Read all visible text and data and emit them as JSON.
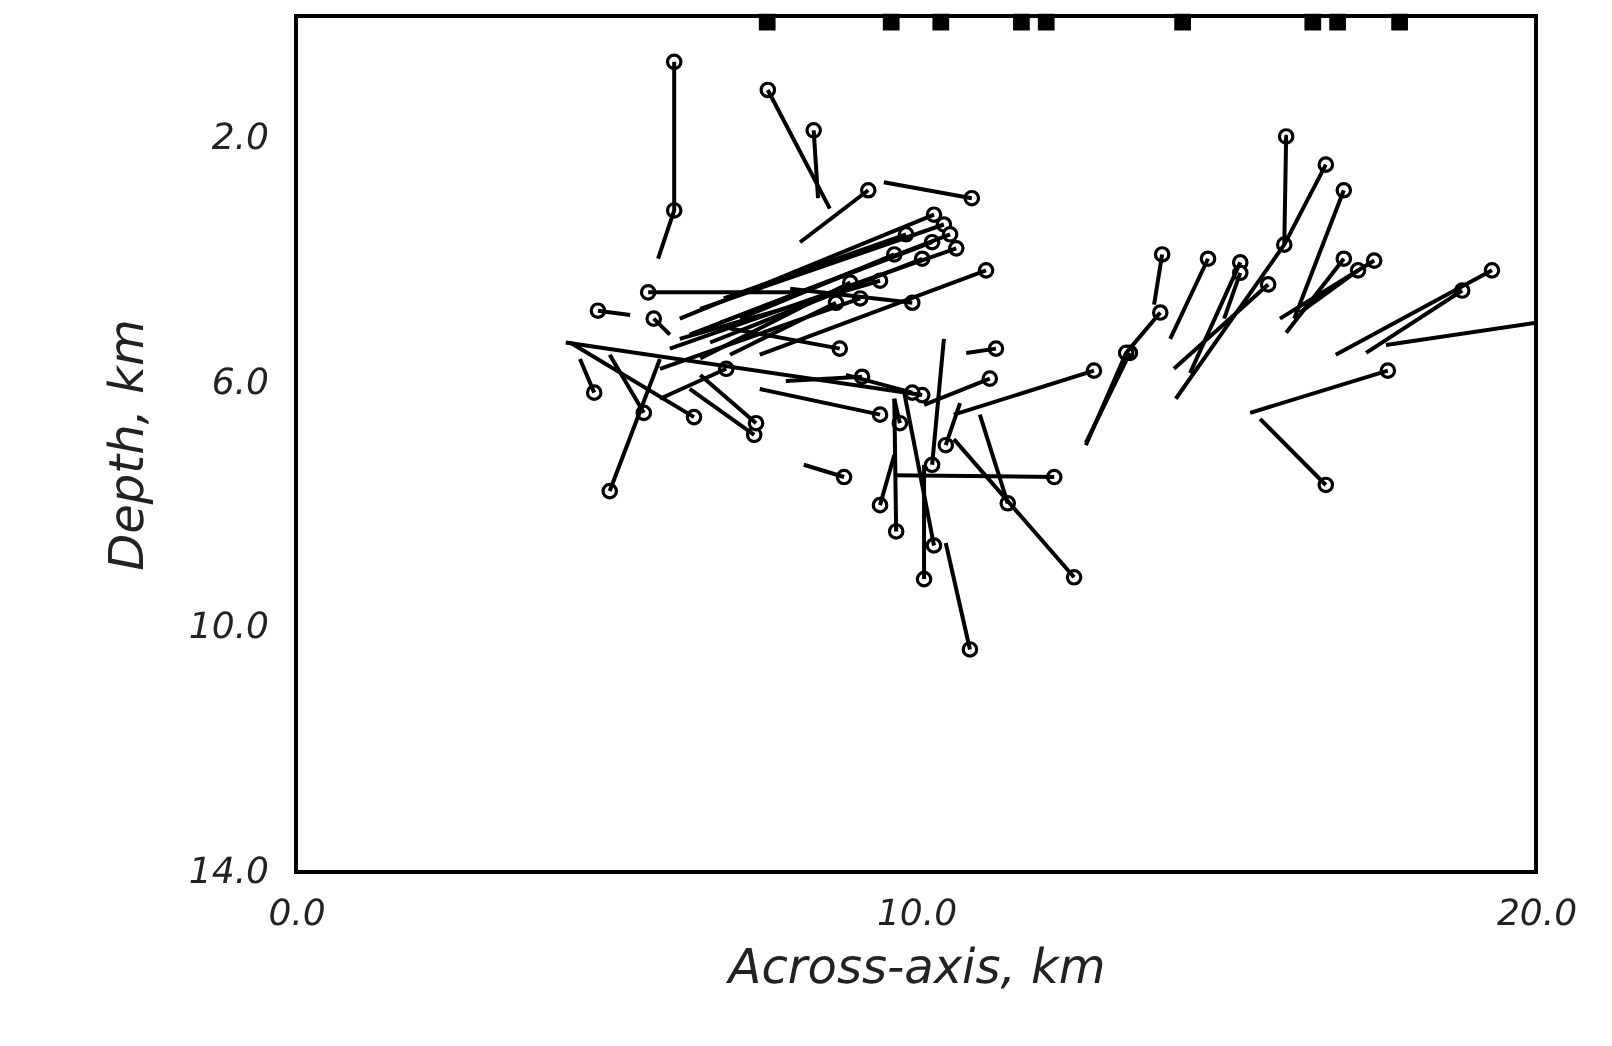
{
  "chart_data": {
    "type": "line",
    "xlabel": "Across-axis, km",
    "ylabel": "Depth, km",
    "xlim": [
      0,
      20
    ],
    "xticks": [
      {
        "value": 0,
        "label": "0.0"
      },
      {
        "value": 10,
        "label": "10.0"
      },
      {
        "value": 20,
        "label": "20.0"
      }
    ],
    "ylim": [
      14,
      0
    ],
    "yticks": [
      {
        "value": 2,
        "label": "2.0"
      },
      {
        "value": 6,
        "label": "6.0"
      },
      {
        "value": 10,
        "label": "10.0"
      },
      {
        "value": 14,
        "label": "14.0"
      },
      {
        "value": 0,
        "label": null
      }
    ],
    "grid": false,
    "line_style": "solid",
    "series": [
      {
        "type": "scatter",
        "marker": "square",
        "color": "#000000",
        "x": [
          7.6,
          9.6,
          10.4,
          11.7,
          12.1,
          14.3,
          16.4,
          16.8,
          17.8
        ],
        "values": [
          0.1,
          0.1,
          0.1,
          0.1,
          0.1,
          0.1,
          0.1,
          0.1,
          0.1
        ]
      },
      {
        "type": "scatter",
        "marker": "circle",
        "color": "#000000",
        "x": [
          6.1,
          6.1,
          7.61,
          8.35,
          9.23,
          10.9,
          10.29,
          10.45,
          10.55,
          10.26,
          10.65,
          10.1,
          9.84,
          9.65,
          11.13,
          9.42,
          8.94,
          9.1,
          9.94,
          8.71,
          5.68,
          4.87,
          5.77,
          4.81,
          5.06,
          5.61,
          6.42,
          7.39,
          7.42,
          6.94,
          10.1,
          9.42,
          8.84,
          12.23,
          12.87,
          12.55,
          11.48,
          10.87,
          10.13,
          10.29,
          9.68,
          9.42,
          9.74,
          9.13,
          9.94,
          10.48,
          11.19,
          11.29,
          10.26,
          13.45,
          8.77,
          15.97,
          16.61,
          16.9,
          15.94,
          13.97,
          14.71,
          15.23,
          15.23,
          15.68,
          13.94,
          13.39,
          16.9,
          17.13,
          17.39,
          19.29,
          18.81,
          17.61,
          16.61
        ],
        "values": [
          0.75,
          3.18,
          1.21,
          1.87,
          2.85,
          2.98,
          3.25,
          3.41,
          3.57,
          3.7,
          3.8,
          3.97,
          3.57,
          3.9,
          4.16,
          4.33,
          4.36,
          4.62,
          4.69,
          4.69,
          4.52,
          4.82,
          4.95,
          6.16,
          7.77,
          6.49,
          6.56,
          6.85,
          6.66,
          5.77,
          6.2,
          8.0,
          7.54,
          7.54,
          5.8,
          9.18,
          7.97,
          10.36,
          9.21,
          8.66,
          8.43,
          6.52,
          6.66,
          5.9,
          6.16,
          7.02,
          5.93,
          5.44,
          7.34,
          5.51,
          5.44,
          1.97,
          2.43,
          2.85,
          3.74,
          3.9,
          3.97,
          4.03,
          4.2,
          4.39,
          4.85,
          5.51,
          3.97,
          4.16,
          4.0,
          4.16,
          4.49,
          5.8,
          7.67
        ]
      },
      {
        "color": "#000000",
        "x": [
          6.1,
          6.1,
          5.84
        ],
        "values": [
          0.75,
          3.18,
          3.97
        ]
      },
      {
        "color": "#000000",
        "x": [
          7.61,
          8.61
        ],
        "values": [
          1.21,
          3.15
        ]
      },
      {
        "color": "#000000",
        "x": [
          8.35,
          8.42
        ],
        "values": [
          1.87,
          2.98
        ]
      },
      {
        "color": "#000000",
        "x": [
          9.23,
          8.13
        ],
        "values": [
          2.85,
          3.7
        ]
      },
      {
        "color": "#000000",
        "x": [
          10.9,
          9.48
        ],
        "values": [
          2.98,
          2.72
        ]
      },
      {
        "color": "#000000",
        "x": [
          10.29,
          6.19
        ],
        "values": [
          3.25,
          4.95
        ]
      },
      {
        "color": "#000000",
        "x": [
          10.45,
          6.52
        ],
        "values": [
          3.41,
          4.79
        ]
      },
      {
        "color": "#000000",
        "x": [
          10.55,
          6.35
        ],
        "values": [
          3.57,
          5.21
        ]
      },
      {
        "color": "#000000",
        "x": [
          10.26,
          6.84
        ],
        "values": [
          3.7,
          5.02
        ]
      },
      {
        "color": "#000000",
        "x": [
          10.65,
          6.03
        ],
        "values": [
          3.8,
          5.44
        ]
      },
      {
        "color": "#000000",
        "x": [
          10.1,
          6.68
        ],
        "values": [
          3.97,
          5.34
        ]
      },
      {
        "color": "#000000",
        "x": [
          9.84,
          6.9
        ],
        "values": [
          3.57,
          4.62
        ]
      },
      {
        "color": "#000000",
        "x": [
          9.65,
          7.16
        ],
        "values": [
          3.9,
          4.95
        ]
      },
      {
        "color": "#000000",
        "x": [
          11.13,
          7.48
        ],
        "values": [
          4.16,
          5.54
        ]
      },
      {
        "color": "#000000",
        "x": [
          9.42,
          6.19
        ],
        "values": [
          4.33,
          5.28
        ]
      },
      {
        "color": "#000000",
        "x": [
          8.94,
          6.52
        ],
        "values": [
          4.36,
          5.6
        ]
      },
      {
        "color": "#000000",
        "x": [
          9.1,
          5.87
        ],
        "values": [
          4.62,
          5.77
        ]
      },
      {
        "color": "#000000",
        "x": [
          9.94,
          7.97
        ],
        "values": [
          4.69,
          4.46
        ]
      },
      {
        "color": "#000000",
        "x": [
          8.71,
          7.0
        ],
        "values": [
          4.69,
          5.54
        ]
      },
      {
        "color": "#000000",
        "x": [
          5.68,
          8.13
        ],
        "values": [
          4.52,
          4.52
        ]
      },
      {
        "color": "#000000",
        "x": [
          4.87,
          5.39
        ],
        "values": [
          4.82,
          4.89
        ]
      },
      {
        "color": "#000000",
        "x": [
          5.77,
          6.03
        ],
        "values": [
          4.95,
          5.21
        ]
      },
      {
        "color": "#000000",
        "x": [
          4.81,
          4.58
        ],
        "values": [
          6.16,
          5.61
        ]
      },
      {
        "color": "#000000",
        "x": [
          5.06,
          5.87
        ],
        "values": [
          7.77,
          5.61
        ]
      },
      {
        "color": "#000000",
        "x": [
          5.61,
          5.06
        ],
        "values": [
          6.49,
          5.54
        ]
      },
      {
        "color": "#000000",
        "x": [
          6.42,
          4.42
        ],
        "values": [
          6.56,
          5.34
        ]
      },
      {
        "color": "#000000",
        "x": [
          7.39,
          6.35
        ],
        "values": [
          6.85,
          6.1
        ]
      },
      {
        "color": "#000000",
        "x": [
          7.42,
          6.52
        ],
        "values": [
          6.66,
          5.87
        ]
      },
      {
        "color": "#000000",
        "x": [
          6.94,
          5.87
        ],
        "values": [
          5.77,
          6.26
        ]
      },
      {
        "color": "#000000",
        "x": [
          10.1,
          4.35
        ],
        "values": [
          6.2,
          5.34
        ]
      },
      {
        "color": "#000000",
        "x": [
          9.42,
          9.65
        ],
        "values": [
          8.0,
          7.18
        ]
      },
      {
        "color": "#000000",
        "x": [
          8.84,
          8.19
        ],
        "values": [
          7.54,
          7.34
        ]
      },
      {
        "color": "#000000",
        "x": [
          12.23,
          9.65
        ],
        "values": [
          7.54,
          7.51
        ]
      },
      {
        "color": "#000000",
        "x": [
          12.87,
          10.61
        ],
        "values": [
          5.8,
          6.52
        ]
      },
      {
        "color": "#000000",
        "x": [
          12.55,
          10.61
        ],
        "values": [
          9.18,
          6.92
        ]
      },
      {
        "color": "#000000",
        "x": [
          11.48,
          11.03
        ],
        "values": [
          7.97,
          6.52
        ]
      },
      {
        "color": "#000000",
        "x": [
          10.87,
          10.48
        ],
        "values": [
          10.36,
          8.62
        ]
      },
      {
        "color": "#000000",
        "x": [
          10.13,
          10.13
        ],
        "values": [
          9.21,
          7.34
        ]
      },
      {
        "color": "#000000",
        "x": [
          10.29,
          9.81
        ],
        "values": [
          8.66,
          6.16
        ]
      },
      {
        "color": "#000000",
        "x": [
          9.68,
          9.65
        ],
        "values": [
          8.43,
          6.26
        ]
      },
      {
        "color": "#000000",
        "x": [
          9.42,
          7.48
        ],
        "values": [
          6.52,
          6.1
        ]
      },
      {
        "color": "#000000",
        "x": [
          9.74,
          9.65
        ],
        "values": [
          6.66,
          6.26
        ]
      },
      {
        "color": "#000000",
        "x": [
          9.13,
          7.9
        ],
        "values": [
          5.9,
          5.97
        ]
      },
      {
        "color": "#000000",
        "x": [
          9.94,
          8.87
        ],
        "values": [
          6.16,
          5.87
        ]
      },
      {
        "color": "#000000",
        "x": [
          10.48,
          10.71
        ],
        "values": [
          7.02,
          6.33
        ]
      },
      {
        "color": "#000000",
        "x": [
          11.19,
          10.13
        ],
        "values": [
          5.93,
          6.36
        ]
      },
      {
        "color": "#000000",
        "x": [
          11.29,
          10.81
        ],
        "values": [
          5.44,
          5.51
        ]
      },
      {
        "color": "#000000",
        "x": [
          10.26,
          10.45
        ],
        "values": [
          7.34,
          5.28
        ]
      },
      {
        "color": "#000000",
        "x": [
          13.45,
          12.74
        ],
        "values": [
          5.51,
          6.98
        ]
      },
      {
        "color": "#000000",
        "x": [
          8.77,
          7.0
        ],
        "values": [
          5.44,
          5.11
        ]
      },
      {
        "color": "#000000",
        "x": [
          16.61,
          15.94,
          15.97,
          15.94,
          14.19
        ],
        "values": [
          2.43,
          3.74,
          1.97,
          3.74,
          6.26
        ]
      },
      {
        "color": "#000000",
        "x": [
          16.9,
          16.1
        ],
        "values": [
          2.85,
          4.95
        ]
      },
      {
        "color": "#000000",
        "x": [
          13.97,
          13.84
        ],
        "values": [
          3.9,
          4.72
        ]
      },
      {
        "color": "#000000",
        "x": [
          14.71,
          14.1
        ],
        "values": [
          3.97,
          5.28
        ]
      },
      {
        "color": "#000000",
        "x": [
          15.23,
          14.42
        ],
        "values": [
          4.03,
          5.84
        ]
      },
      {
        "color": "#000000",
        "x": [
          15.23,
          14.97
        ],
        "values": [
          4.2,
          4.95
        ]
      },
      {
        "color": "#000000",
        "x": [
          15.68,
          14.16
        ],
        "values": [
          4.39,
          5.77
        ]
      },
      {
        "color": "#000000",
        "x": [
          13.94,
          13.39,
          12.74
        ],
        "values": [
          4.85,
          5.51,
          7.02
        ]
      },
      {
        "color": "#000000",
        "x": [
          16.9,
          15.97
        ],
        "values": [
          3.97,
          5.18
        ]
      },
      {
        "color": "#000000",
        "x": [
          17.13,
          16.19
        ],
        "values": [
          4.16,
          4.85
        ]
      },
      {
        "color": "#000000",
        "x": [
          17.39,
          15.87
        ],
        "values": [
          4.0,
          4.95
        ]
      },
      {
        "color": "#000000",
        "x": [
          19.29,
          16.77
        ],
        "values": [
          4.16,
          5.54
        ]
      },
      {
        "color": "#000000",
        "x": [
          18.81,
          17.26
        ],
        "values": [
          4.49,
          5.51
        ]
      },
      {
        "color": "#000000",
        "x": [
          19.97,
          17.58
        ],
        "values": [
          5.02,
          5.38
        ]
      },
      {
        "color": "#000000",
        "x": [
          17.61,
          15.39
        ],
        "values": [
          5.8,
          6.49
        ]
      },
      {
        "color": "#000000",
        "x": [
          16.61,
          15.55
        ],
        "values": [
          7.67,
          6.59
        ]
      }
    ]
  }
}
